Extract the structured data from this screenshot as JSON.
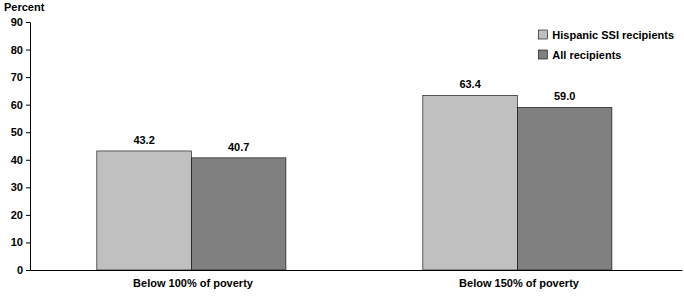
{
  "chart_data": {
    "type": "bar",
    "y_label": "Percent",
    "categories": [
      "Below 100% of poverty",
      "Below 150% of poverty"
    ],
    "series": [
      {
        "name": "Hispanic SSI recipients",
        "color": "#c0c0c0",
        "values": [
          43.2,
          63.4
        ],
        "value_labels": [
          "43.2",
          "63.4"
        ]
      },
      {
        "name": "All recipients",
        "color": "#808080",
        "values": [
          40.7,
          59.0
        ],
        "value_labels": [
          "40.7",
          "59.0"
        ]
      }
    ],
    "ylim": [
      0,
      90
    ],
    "yticks": [
      0,
      10,
      20,
      30,
      40,
      50,
      60,
      70,
      80,
      90
    ],
    "grid": false,
    "legend": "top-right",
    "data_labels": true
  }
}
